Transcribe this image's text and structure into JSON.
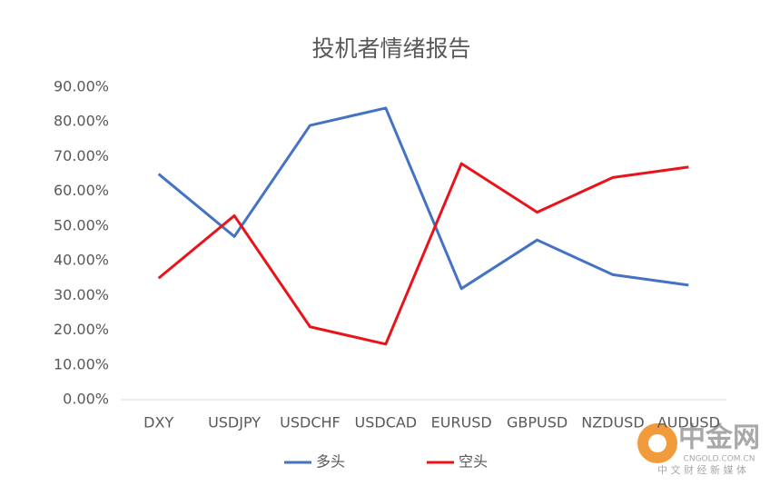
{
  "chart_data": {
    "type": "line",
    "title": "投机者情绪报告",
    "categories": [
      "DXY",
      "USDJPY",
      "USDCHF",
      "USDCAD",
      "EURUSD",
      "GBPUSD",
      "NZDUSD",
      "AUDUSD"
    ],
    "series": [
      {
        "name": "多头",
        "color": "#4472c4",
        "values": [
          65,
          47,
          79,
          84,
          32,
          46,
          36,
          33
        ]
      },
      {
        "name": "空头",
        "color": "#e8141a",
        "values": [
          35,
          53,
          21,
          16,
          68,
          54,
          64,
          67
        ]
      }
    ],
    "ylim": [
      0,
      90
    ],
    "yticks": [
      {
        "value": 0,
        "label": "0.00%"
      },
      {
        "value": 10,
        "label": "10.00%"
      },
      {
        "value": 20,
        "label": "20.00%"
      },
      {
        "value": 30,
        "label": "30.00%"
      },
      {
        "value": 40,
        "label": "40.00%"
      },
      {
        "value": 50,
        "label": "50.00%"
      },
      {
        "value": 60,
        "label": "60.00%"
      },
      {
        "value": 70,
        "label": "70.00%"
      },
      {
        "value": 80,
        "label": "80.00%"
      },
      {
        "value": 90,
        "label": "90.00%"
      }
    ],
    "grid": false,
    "legend": "bottom"
  },
  "watermark": {
    "name": "中金网",
    "domain": "CNGOLD.COM.CN",
    "tagline": "中 文 财 经 新 媒 体"
  }
}
